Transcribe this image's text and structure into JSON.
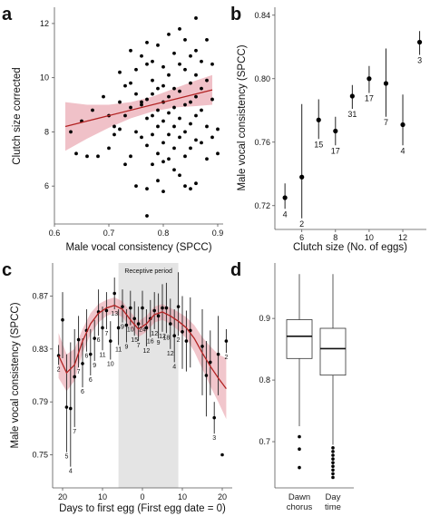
{
  "colors": {
    "fit_line": "#b22222",
    "ci_band": "#e8a0aa",
    "points": "#000000",
    "shade": "#e4e4e4"
  },
  "chart_data": [
    {
      "panel": "a",
      "type": "scatter",
      "xlabel": "Male vocal consistency (SPCC)",
      "ylabel": "Clutch size corrected",
      "xlim": [
        0.6,
        0.91
      ],
      "ylim": [
        4.6,
        12.6
      ],
      "xticks": [
        0.6,
        0.7,
        0.8,
        0.9
      ],
      "yticks": [
        6,
        8,
        10,
        12
      ],
      "grid": false,
      "fit": {
        "x": [
          0.62,
          0.89
        ],
        "y": [
          8.2,
          9.55
        ]
      },
      "ci": {
        "x": [
          0.62,
          0.66,
          0.7,
          0.74,
          0.78,
          0.82,
          0.86,
          0.89
        ],
        "lower": [
          7.3,
          7.75,
          8.15,
          8.5,
          8.75,
          8.9,
          8.95,
          9.0
        ],
        "upper": [
          9.1,
          9.0,
          9.0,
          9.1,
          9.3,
          9.6,
          9.9,
          10.1
        ]
      },
      "points": [
        [
          0.63,
          8.0
        ],
        [
          0.64,
          7.2
        ],
        [
          0.65,
          8.4
        ],
        [
          0.66,
          7.1
        ],
        [
          0.67,
          8.8
        ],
        [
          0.68,
          7.1
        ],
        [
          0.69,
          9.3
        ],
        [
          0.7,
          8.6
        ],
        [
          0.7,
          7.4
        ],
        [
          0.71,
          8.2
        ],
        [
          0.71,
          7.9
        ],
        [
          0.72,
          9.1
        ],
        [
          0.72,
          10.2
        ],
        [
          0.73,
          9.7
        ],
        [
          0.73,
          8.6
        ],
        [
          0.73,
          6.8
        ],
        [
          0.74,
          11.0
        ],
        [
          0.74,
          9.8
        ],
        [
          0.74,
          8.9
        ],
        [
          0.74,
          7.1
        ],
        [
          0.75,
          10.3
        ],
        [
          0.75,
          9.4
        ],
        [
          0.75,
          8.0
        ],
        [
          0.75,
          6.0
        ],
        [
          0.76,
          10.8
        ],
        [
          0.76,
          9.0
        ],
        [
          0.76,
          7.8
        ],
        [
          0.77,
          11.3
        ],
        [
          0.77,
          10.5
        ],
        [
          0.77,
          9.2
        ],
        [
          0.77,
          8.5
        ],
        [
          0.77,
          7.5
        ],
        [
          0.77,
          5.9
        ],
        [
          0.77,
          4.9
        ],
        [
          0.78,
          10.6
        ],
        [
          0.78,
          9.9
        ],
        [
          0.78,
          9.4
        ],
        [
          0.78,
          8.6
        ],
        [
          0.78,
          7.9
        ],
        [
          0.78,
          6.8
        ],
        [
          0.79,
          11.2
        ],
        [
          0.79,
          9.6
        ],
        [
          0.79,
          8.8
        ],
        [
          0.79,
          8.2
        ],
        [
          0.79,
          7.2
        ],
        [
          0.79,
          6.2
        ],
        [
          0.8,
          10.4
        ],
        [
          0.8,
          9.7
        ],
        [
          0.8,
          9.1
        ],
        [
          0.8,
          8.4
        ],
        [
          0.8,
          7.6
        ],
        [
          0.8,
          6.9
        ],
        [
          0.81,
          11.6
        ],
        [
          0.81,
          10.1
        ],
        [
          0.81,
          9.3
        ],
        [
          0.81,
          8.7
        ],
        [
          0.81,
          7.9
        ],
        [
          0.81,
          7.0
        ],
        [
          0.82,
          10.9
        ],
        [
          0.82,
          9.6
        ],
        [
          0.82,
          8.9
        ],
        [
          0.82,
          8.2
        ],
        [
          0.82,
          7.4
        ],
        [
          0.82,
          6.6
        ],
        [
          0.83,
          11.8
        ],
        [
          0.83,
          10.5
        ],
        [
          0.83,
          9.5
        ],
        [
          0.83,
          8.5
        ],
        [
          0.83,
          7.8
        ],
        [
          0.83,
          6.4
        ],
        [
          0.84,
          11.4
        ],
        [
          0.84,
          10.3
        ],
        [
          0.84,
          9.0
        ],
        [
          0.84,
          8.0
        ],
        [
          0.84,
          7.1
        ],
        [
          0.85,
          10.8
        ],
        [
          0.85,
          9.8
        ],
        [
          0.85,
          9.1
        ],
        [
          0.85,
          8.3
        ],
        [
          0.85,
          7.4
        ],
        [
          0.85,
          5.9
        ],
        [
          0.86,
          12.2
        ],
        [
          0.86,
          11.0
        ],
        [
          0.86,
          10.1
        ],
        [
          0.86,
          9.3
        ],
        [
          0.86,
          8.6
        ],
        [
          0.86,
          7.7
        ],
        [
          0.86,
          6.1
        ],
        [
          0.87,
          10.6
        ],
        [
          0.87,
          9.6
        ],
        [
          0.87,
          8.8
        ],
        [
          0.87,
          7.6
        ],
        [
          0.88,
          11.4
        ],
        [
          0.88,
          9.9
        ],
        [
          0.88,
          8.2
        ],
        [
          0.88,
          7.0
        ],
        [
          0.89,
          10.5
        ],
        [
          0.89,
          9.2
        ],
        [
          0.89,
          7.8
        ],
        [
          0.9,
          8.1
        ],
        [
          0.9,
          7.2
        ],
        [
          0.76,
          9.1
        ],
        [
          0.8,
          5.8
        ],
        [
          0.84,
          6.0
        ],
        [
          0.72,
          8.1
        ]
      ]
    },
    {
      "panel": "b",
      "type": "scatter",
      "xlabel": "Clutch size (No. of eggs)",
      "ylabel": "Male vocal consistency (SPCC)",
      "xlim": [
        4.4,
        13.4
      ],
      "ylim": [
        0.705,
        0.845
      ],
      "xticks": [
        6,
        8,
        10,
        12
      ],
      "yticks": [
        0.72,
        0.76,
        0.8,
        0.84
      ],
      "grid": false,
      "points": [
        {
          "x": 5,
          "y": 0.725,
          "lo": 0.718,
          "hi": 0.734,
          "n": "4"
        },
        {
          "x": 6,
          "y": 0.738,
          "lo": 0.712,
          "hi": 0.784,
          "n": "2"
        },
        {
          "x": 7,
          "y": 0.774,
          "lo": 0.762,
          "hi": 0.787,
          "n": "15"
        },
        {
          "x": 8,
          "y": 0.767,
          "lo": 0.758,
          "hi": 0.776,
          "n": "17"
        },
        {
          "x": 9,
          "y": 0.789,
          "lo": 0.781,
          "hi": 0.796,
          "n": "31"
        },
        {
          "x": 10,
          "y": 0.8,
          "lo": 0.791,
          "hi": 0.808,
          "n": "17"
        },
        {
          "x": 11,
          "y": 0.797,
          "lo": 0.776,
          "hi": 0.819,
          "n": "7"
        },
        {
          "x": 12,
          "y": 0.771,
          "lo": 0.758,
          "hi": 0.79,
          "n": "4"
        },
        {
          "x": 13,
          "y": 0.823,
          "lo": 0.815,
          "hi": 0.83,
          "n": "3"
        }
      ]
    },
    {
      "panel": "c",
      "type": "line",
      "xlabel": "Days to first egg (First egg date = 0)",
      "ylabel": "Male vocal consistency (SPCC)",
      "annotation": "Receptive period",
      "shaded_x": [
        -6,
        9
      ],
      "xlim": [
        -22.5,
        22.5
      ],
      "ylim": [
        0.725,
        0.895
      ],
      "xticks": [
        20,
        10,
        0,
        10,
        20
      ],
      "yticks": [
        0.75,
        0.79,
        0.83,
        0.87
      ],
      "grid": false,
      "smooth": {
        "x": [
          -21,
          -19,
          -17,
          -15,
          -13,
          -11,
          -9,
          -7,
          -5,
          -3,
          -1,
          1,
          3,
          5,
          7,
          9,
          11,
          13,
          15,
          17,
          19,
          21
        ],
        "y": [
          0.825,
          0.812,
          0.818,
          0.836,
          0.849,
          0.857,
          0.861,
          0.863,
          0.86,
          0.852,
          0.845,
          0.849,
          0.856,
          0.858,
          0.855,
          0.851,
          0.846,
          0.838,
          0.827,
          0.817,
          0.808,
          0.8
        ],
        "lower": [
          0.808,
          0.798,
          0.806,
          0.827,
          0.841,
          0.85,
          0.855,
          0.857,
          0.854,
          0.846,
          0.839,
          0.843,
          0.85,
          0.852,
          0.849,
          0.844,
          0.838,
          0.828,
          0.815,
          0.802,
          0.79,
          0.777
        ],
        "upper": [
          0.842,
          0.826,
          0.83,
          0.845,
          0.857,
          0.864,
          0.867,
          0.869,
          0.866,
          0.858,
          0.851,
          0.855,
          0.862,
          0.864,
          0.861,
          0.858,
          0.854,
          0.848,
          0.839,
          0.832,
          0.826,
          0.823
        ]
      },
      "points": [
        {
          "x": -21,
          "y": 0.825,
          "lo": 0.818,
          "hi": 0.833,
          "n": "2"
        },
        {
          "x": -20,
          "y": 0.852,
          "lo": 0.823,
          "hi": 0.873,
          "n": ""
        },
        {
          "x": -19,
          "y": 0.786,
          "lo": 0.752,
          "hi": 0.826,
          "n": "5"
        },
        {
          "x": -18,
          "y": 0.785,
          "lo": 0.741,
          "hi": 0.835,
          "n": "4"
        },
        {
          "x": -17,
          "y": 0.809,
          "lo": 0.771,
          "hi": 0.845,
          "n": "7"
        },
        {
          "x": -16,
          "y": 0.837,
          "lo": 0.816,
          "hi": 0.855,
          "n": "7"
        },
        {
          "x": -15,
          "y": 0.819,
          "lo": 0.801,
          "hi": 0.838,
          "n": "6"
        },
        {
          "x": -14,
          "y": 0.844,
          "lo": 0.828,
          "hi": 0.86,
          "n": "6"
        },
        {
          "x": -13,
          "y": 0.826,
          "lo": 0.81,
          "hi": 0.845,
          "n": "6"
        },
        {
          "x": -12,
          "y": 0.838,
          "lo": 0.821,
          "hi": 0.852,
          "n": "9"
        },
        {
          "x": -11,
          "y": 0.858,
          "lo": 0.84,
          "hi": 0.875,
          "n": "6"
        },
        {
          "x": -10,
          "y": 0.846,
          "lo": 0.829,
          "hi": 0.862,
          "n": "11"
        },
        {
          "x": -9,
          "y": 0.859,
          "lo": 0.845,
          "hi": 0.873,
          "n": "7"
        },
        {
          "x": -8,
          "y": 0.836,
          "lo": 0.822,
          "hi": 0.851,
          "n": "10"
        },
        {
          "x": -7,
          "y": 0.872,
          "lo": 0.86,
          "hi": 0.884,
          "n": "13"
        },
        {
          "x": -6,
          "y": 0.846,
          "lo": 0.833,
          "hi": 0.86,
          "n": "11"
        },
        {
          "x": -5,
          "y": 0.862,
          "lo": 0.85,
          "hi": 0.875,
          "n": "9"
        },
        {
          "x": -4,
          "y": 0.848,
          "lo": 0.835,
          "hi": 0.86,
          "n": "9"
        },
        {
          "x": -3,
          "y": 0.861,
          "lo": 0.848,
          "hi": 0.874,
          "n": "10"
        },
        {
          "x": -2,
          "y": 0.853,
          "lo": 0.84,
          "hi": 0.866,
          "n": "15"
        },
        {
          "x": -1,
          "y": 0.849,
          "lo": 0.836,
          "hi": 0.862,
          "n": "7"
        },
        {
          "x": 0,
          "y": 0.861,
          "lo": 0.848,
          "hi": 0.874,
          "n": "24"
        },
        {
          "x": 1,
          "y": 0.846,
          "lo": 0.832,
          "hi": 0.86,
          "n": "12"
        },
        {
          "x": 2,
          "y": 0.853,
          "lo": 0.839,
          "hi": 0.867,
          "n": "16"
        },
        {
          "x": 3,
          "y": 0.859,
          "lo": 0.845,
          "hi": 0.873,
          "n": "12"
        },
        {
          "x": 4,
          "y": 0.855,
          "lo": 0.838,
          "hi": 0.872,
          "n": "9"
        },
        {
          "x": 5,
          "y": 0.861,
          "lo": 0.843,
          "hi": 0.879,
          "n": "12"
        },
        {
          "x": 6,
          "y": 0.861,
          "lo": 0.842,
          "hi": 0.88,
          "n": "18"
        },
        {
          "x": 7,
          "y": 0.849,
          "lo": 0.83,
          "hi": 0.868,
          "n": "12"
        },
        {
          "x": 8,
          "y": 0.84,
          "lo": 0.82,
          "hi": 0.86,
          "n": "4"
        },
        {
          "x": 9,
          "y": 0.862,
          "lo": 0.84,
          "hi": 0.888,
          "n": "2"
        },
        {
          "x": 10,
          "y": 0.843,
          "lo": 0.815,
          "hi": 0.87,
          "n": ""
        },
        {
          "x": 11,
          "y": 0.836,
          "lo": 0.813,
          "hi": 0.859,
          "n": ""
        },
        {
          "x": 12,
          "y": 0.844,
          "lo": 0.816,
          "hi": 0.869,
          "n": ""
        },
        {
          "x": 15,
          "y": 0.832,
          "lo": 0.795,
          "hi": 0.86,
          "n": ""
        },
        {
          "x": 16,
          "y": 0.81,
          "lo": 0.779,
          "hi": 0.836,
          "n": ""
        },
        {
          "x": 17,
          "y": 0.82,
          "lo": 0.795,
          "hi": 0.844,
          "n": ""
        },
        {
          "x": 18,
          "y": 0.778,
          "lo": 0.766,
          "hi": 0.79,
          "n": "3"
        },
        {
          "x": 19,
          "y": 0.826,
          "lo": 0.795,
          "hi": 0.855,
          "n": ""
        },
        {
          "x": 20,
          "y": 0.75,
          "lo": 0.75,
          "hi": 0.75,
          "n": ""
        },
        {
          "x": 21,
          "y": 0.836,
          "lo": 0.827,
          "hi": 0.845,
          "n": "2"
        }
      ]
    },
    {
      "panel": "d",
      "type": "box",
      "xlabel": "",
      "ylabel": "",
      "categories": [
        "Dawn chorus",
        "Day time"
      ],
      "ylim": [
        0.625,
        0.99
      ],
      "yticks": [
        0.7,
        0.8,
        0.9
      ],
      "grid": false,
      "boxes": [
        {
          "category": "Dawn chorus",
          "whisker_low": 0.725,
          "q1": 0.835,
          "median": 0.871,
          "q3": 0.898,
          "whisker_high": 0.972,
          "outliers": [
            0.708,
            0.688,
            0.658
          ]
        },
        {
          "category": "Day time",
          "whisker_low": 0.695,
          "q1": 0.808,
          "median": 0.851,
          "q3": 0.884,
          "whisker_high": 0.972,
          "outliers": [
            0.69,
            0.684,
            0.678,
            0.672,
            0.666,
            0.66,
            0.654,
            0.648,
            0.642
          ]
        }
      ]
    }
  ]
}
